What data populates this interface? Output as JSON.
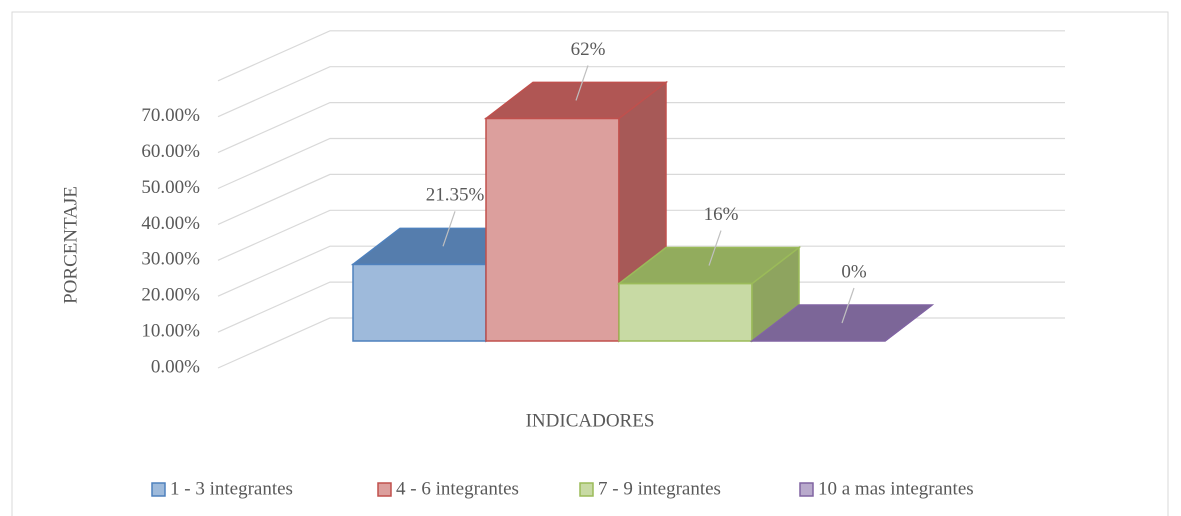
{
  "chart_data": {
    "type": "bar",
    "y_label": "PORCENTAJE",
    "x_label": "INDICADORES",
    "categories": [
      null
    ],
    "series": [
      {
        "name": "1 - 3 integrantes",
        "color": "#4f81bd",
        "values": [
          21.35
        ],
        "value_labels": [
          "21.35%"
        ]
      },
      {
        "name": "4 - 6 integrantes",
        "color": "#c0504d",
        "values": [
          62
        ],
        "value_labels": [
          "62%"
        ]
      },
      {
        "name": "7 - 9 integrantes",
        "color": "#9bbb59",
        "values": [
          16
        ],
        "value_labels": [
          "16%"
        ]
      },
      {
        "name": "10 a mas integrantes",
        "color": "#8064a2",
        "values": [
          0
        ],
        "value_labels": [
          "0%"
        ]
      }
    ],
    "ylim": [
      0,
      80
    ],
    "yticks": [
      {
        "value": 0,
        "label": "0.00%"
      },
      {
        "value": 10,
        "label": "10.00%"
      },
      {
        "value": 20,
        "label": "20.00%"
      },
      {
        "value": 30,
        "label": "30.00%"
      },
      {
        "value": 40,
        "label": "40.00%"
      },
      {
        "value": 50,
        "label": "50.00%"
      },
      {
        "value": 60,
        "label": "60.00%"
      },
      {
        "value": 70,
        "label": "70.00%"
      }
    ],
    "grid": true,
    "legend": "bottom"
  }
}
